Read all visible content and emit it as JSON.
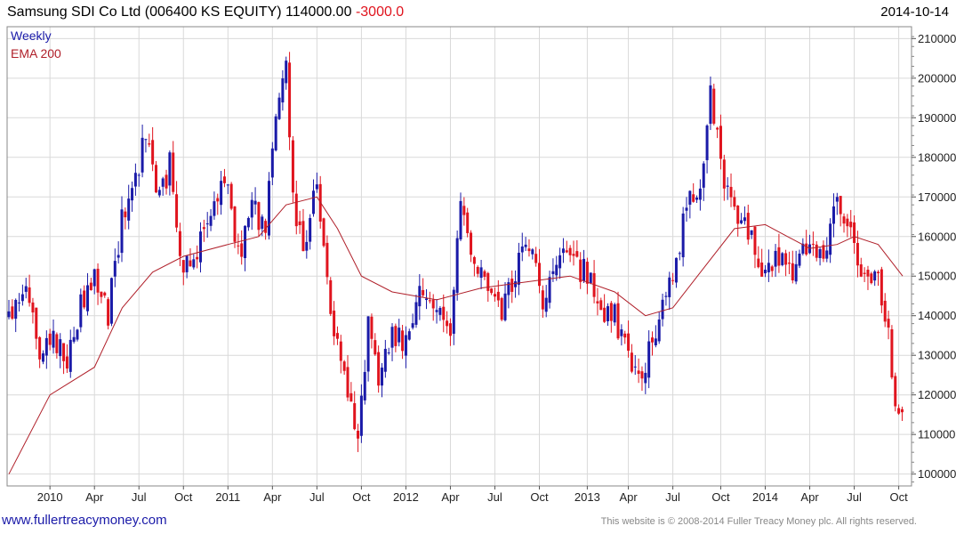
{
  "header": {
    "title": "Samsung SDI Co Ltd (006400 KS EQUITY) 114000.00",
    "change": "-3000.0",
    "date": "2014-10-14"
  },
  "footer": {
    "website": "www.fullertreacymoney.com",
    "copyright": "This website is © 2008-2014 Fuller Treacy Money plc. All rights reserved."
  },
  "chart_data": {
    "type": "candlestick",
    "legend": [
      {
        "label": "Weekly",
        "color": "#1a1aa8"
      },
      {
        "label": "EMA 200",
        "color": "#b0202a"
      }
    ],
    "up_color": "#1a1aa8",
    "down_color": "#e0141e",
    "ema_color": "#b0202a",
    "ylim": [
      97000,
      213000
    ],
    "yticks": [
      100000,
      110000,
      120000,
      130000,
      140000,
      150000,
      160000,
      170000,
      180000,
      190000,
      200000,
      210000
    ],
    "ytick_labels": [
      "100000",
      "110000",
      "120000",
      "130000",
      "140000",
      "150000",
      "160000",
      "170000",
      "180000",
      "190000",
      "200000",
      "210000"
    ],
    "x_start": "2009-10-12",
    "x_end": "2014-10-14",
    "xticks": [
      {
        "label": "2010",
        "date": "2010-01-04"
      },
      {
        "label": "Apr",
        "date": "2010-04-05"
      },
      {
        "label": "Jul",
        "date": "2010-07-05"
      },
      {
        "label": "Oct",
        "date": "2010-10-04"
      },
      {
        "label": "2011",
        "date": "2011-01-03"
      },
      {
        "label": "Apr",
        "date": "2011-04-04"
      },
      {
        "label": "Jul",
        "date": "2011-07-04"
      },
      {
        "label": "Oct",
        "date": "2011-10-03"
      },
      {
        "label": "2012",
        "date": "2012-01-02"
      },
      {
        "label": "Apr",
        "date": "2012-04-02"
      },
      {
        "label": "Jul",
        "date": "2012-07-02"
      },
      {
        "label": "Oct",
        "date": "2012-10-01"
      },
      {
        "label": "2013",
        "date": "2013-01-07"
      },
      {
        "label": "Apr",
        "date": "2013-04-01"
      },
      {
        "label": "Jul",
        "date": "2013-07-01"
      },
      {
        "label": "Oct",
        "date": "2013-10-07"
      },
      {
        "label": "2014",
        "date": "2014-01-06"
      },
      {
        "label": "Apr",
        "date": "2014-04-07"
      },
      {
        "label": "Jul",
        "date": "2014-07-07"
      },
      {
        "label": "Oct",
        "date": "2014-10-06"
      }
    ],
    "close_path": [
      [
        "2009-10-12",
        140000
      ],
      [
        "2009-11-16",
        150000
      ],
      [
        "2009-12-14",
        130000
      ],
      [
        "2010-01-11",
        135000
      ],
      [
        "2010-02-08",
        128000
      ],
      [
        "2010-03-08",
        143000
      ],
      [
        "2010-04-05",
        150000
      ],
      [
        "2010-05-03",
        140000
      ],
      [
        "2010-05-31",
        165000
      ],
      [
        "2010-06-28",
        175000
      ],
      [
        "2010-07-19",
        185000
      ],
      [
        "2010-08-16",
        170000
      ],
      [
        "2010-09-06",
        178000
      ],
      [
        "2010-10-04",
        152000
      ],
      [
        "2010-11-01",
        155000
      ],
      [
        "2010-11-29",
        168000
      ],
      [
        "2010-12-27",
        175000
      ],
      [
        "2011-01-24",
        155000
      ],
      [
        "2011-02-21",
        168000
      ],
      [
        "2011-03-21",
        162000
      ],
      [
        "2011-04-11",
        190000
      ],
      [
        "2011-05-02",
        205000
      ],
      [
        "2011-05-16",
        168000
      ],
      [
        "2011-06-06",
        158000
      ],
      [
        "2011-07-04",
        172000
      ],
      [
        "2011-08-01",
        140000
      ],
      [
        "2011-09-05",
        120000
      ],
      [
        "2011-09-26",
        107000
      ],
      [
        "2011-10-17",
        140000
      ],
      [
        "2011-11-07",
        125000
      ],
      [
        "2011-12-05",
        135000
      ],
      [
        "2012-01-02",
        132000
      ],
      [
        "2012-02-06",
        148000
      ],
      [
        "2012-03-05",
        140000
      ],
      [
        "2012-04-02",
        135000
      ],
      [
        "2012-04-23",
        168000
      ],
      [
        "2012-05-21",
        155000
      ],
      [
        "2012-06-18",
        148000
      ],
      [
        "2012-07-16",
        140000
      ],
      [
        "2012-08-13",
        152000
      ],
      [
        "2012-09-10",
        158000
      ],
      [
        "2012-10-08",
        145000
      ],
      [
        "2012-11-05",
        152000
      ],
      [
        "2012-12-03",
        155000
      ],
      [
        "2013-01-07",
        150000
      ],
      [
        "2013-02-04",
        142000
      ],
      [
        "2013-03-04",
        140000
      ],
      [
        "2013-04-08",
        125000
      ],
      [
        "2013-05-06",
        128000
      ],
      [
        "2013-06-03",
        138000
      ],
      [
        "2013-07-01",
        150000
      ],
      [
        "2013-07-29",
        168000
      ],
      [
        "2013-08-26",
        175000
      ],
      [
        "2013-09-16",
        195000
      ],
      [
        "2013-10-07",
        178000
      ],
      [
        "2013-11-04",
        165000
      ],
      [
        "2013-12-02",
        162000
      ],
      [
        "2014-01-06",
        150000
      ],
      [
        "2014-02-03",
        155000
      ],
      [
        "2014-03-03",
        150000
      ],
      [
        "2014-04-07",
        158000
      ],
      [
        "2014-05-05",
        152000
      ],
      [
        "2014-06-02",
        170000
      ],
      [
        "2014-06-30",
        160000
      ],
      [
        "2014-07-28",
        148000
      ],
      [
        "2014-08-25",
        150000
      ],
      [
        "2014-09-15",
        135000
      ],
      [
        "2014-09-29",
        120000
      ],
      [
        "2014-10-14",
        114000
      ]
    ],
    "ema_200": [
      [
        "2009-10-12",
        100000
      ],
      [
        "2010-01-04",
        120000
      ],
      [
        "2010-04-05",
        127000
      ],
      [
        "2010-06-01",
        142000
      ],
      [
        "2010-08-02",
        151000
      ],
      [
        "2010-10-04",
        155000
      ],
      [
        "2011-01-03",
        158000
      ],
      [
        "2011-03-07",
        160000
      ],
      [
        "2011-05-02",
        168000
      ],
      [
        "2011-07-04",
        170000
      ],
      [
        "2011-08-15",
        162000
      ],
      [
        "2011-10-03",
        150000
      ],
      [
        "2011-12-05",
        146000
      ],
      [
        "2012-03-05",
        144000
      ],
      [
        "2012-06-04",
        147000
      ],
      [
        "2012-09-03",
        148500
      ],
      [
        "2012-12-03",
        150000
      ],
      [
        "2013-03-04",
        146000
      ],
      [
        "2013-05-06",
        140000
      ],
      [
        "2013-07-01",
        142000
      ],
      [
        "2013-09-02",
        152000
      ],
      [
        "2013-11-04",
        162000
      ],
      [
        "2014-01-06",
        163000
      ],
      [
        "2014-04-07",
        157000
      ],
      [
        "2014-06-02",
        158000
      ],
      [
        "2014-07-07",
        160000
      ],
      [
        "2014-08-25",
        158000
      ],
      [
        "2014-10-14",
        150000
      ]
    ]
  }
}
